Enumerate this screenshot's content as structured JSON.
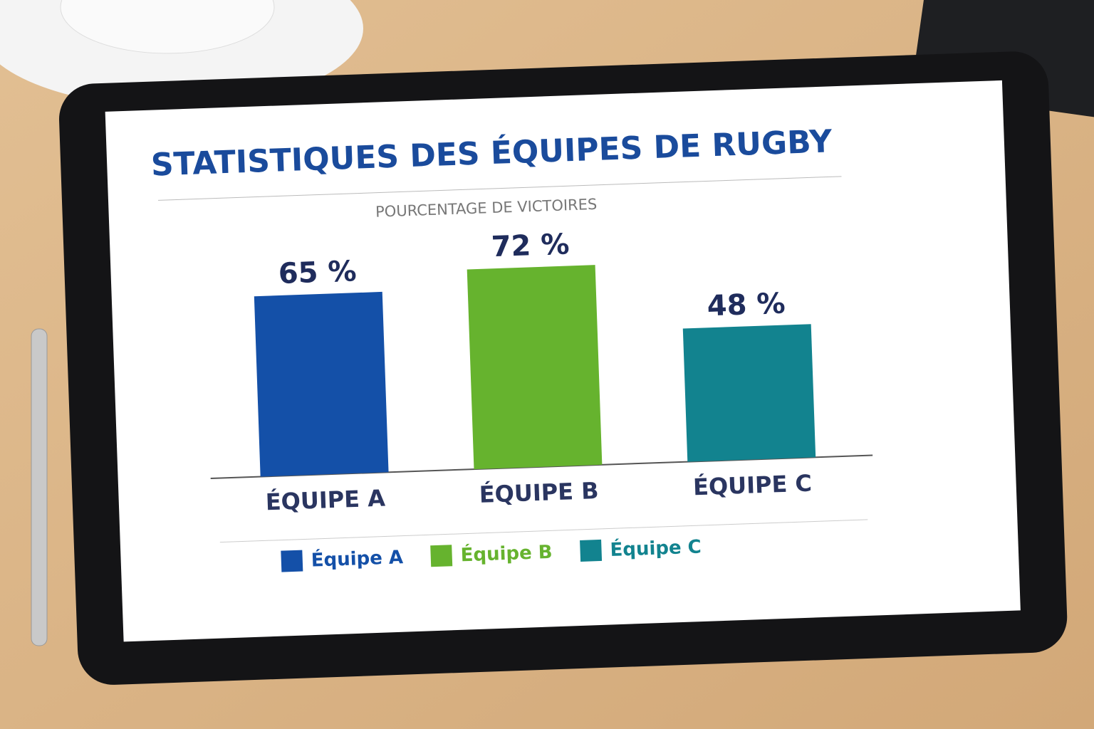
{
  "chart_data": {
    "type": "bar",
    "title": "STATISTIQUES DES ÉQUIPES DE RUGBY",
    "subtitle": "POURCENTAGE DE VICTOIRES",
    "categories": [
      "ÉQUIPE A",
      "ÉQUIPE B",
      "ÉQUIPE C"
    ],
    "series": [
      {
        "name": "Équipe A",
        "color": "#1450a8",
        "values": [
          65,
          null,
          null
        ],
        "value_labels": [
          "65 %",
          null,
          null
        ]
      },
      {
        "name": "Équipe B",
        "color": "#66b32e",
        "values": [
          null,
          72,
          null
        ],
        "value_labels": [
          null,
          "72 %",
          null
        ]
      },
      {
        "name": "Équipe C",
        "color": "#12838f",
        "values": [
          null,
          null,
          48
        ],
        "value_labels": [
          null,
          null,
          "48 %"
        ]
      }
    ],
    "legend": "bottom"
  }
}
